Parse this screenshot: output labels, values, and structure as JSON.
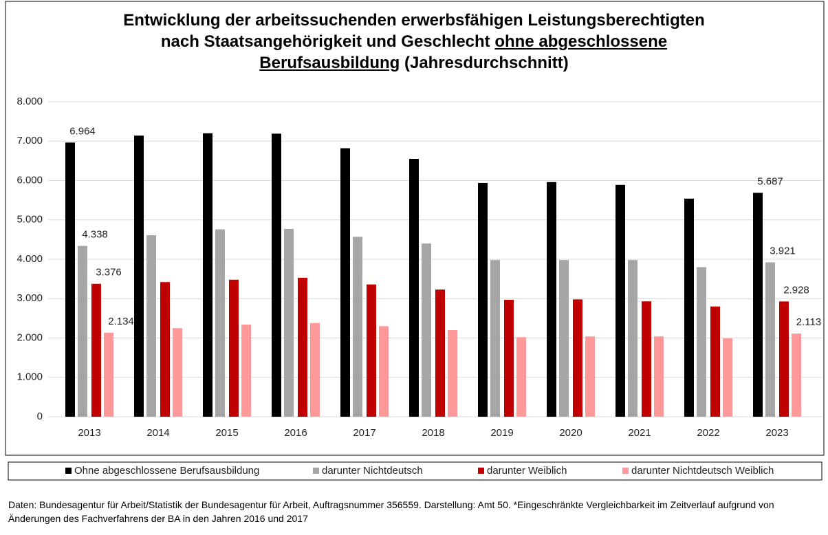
{
  "chart_data": {
    "type": "bar",
    "title_lines": [
      [
        {
          "text": "Entwicklung der arbeitssuchenden erwerbsfähigen Leistungsberechtigten",
          "underline": false
        }
      ],
      [
        {
          "text": "nach Staatsangehörigkeit und Geschlecht ",
          "underline": false
        },
        {
          "text": "ohne abgeschlossene",
          "underline": true
        }
      ],
      [
        {
          "text": "Berufsausbildung",
          "underline": true
        },
        {
          "text": " (Jahresdurchschnitt)",
          "underline": false
        }
      ]
    ],
    "categories": [
      "2013",
      "2014",
      "2015",
      "2016",
      "2017",
      "2018",
      "2019",
      "2020",
      "2021",
      "2022",
      "2023"
    ],
    "series": [
      {
        "name": "Ohne abgeschlossene Berufsausbildung",
        "color": "#000000",
        "values": [
          6964,
          7140,
          7200,
          7190,
          6820,
          6550,
          5940,
          5960,
          5890,
          5540,
          5687
        ],
        "value_labels": [
          "6.964",
          null,
          null,
          null,
          null,
          null,
          null,
          null,
          null,
          null,
          "5.687"
        ]
      },
      {
        "name": "darunter Nichtdeutsch",
        "color": "#a6a6a6",
        "values": [
          4338,
          4610,
          4760,
          4770,
          4570,
          4400,
          3980,
          3980,
          3980,
          3800,
          3921
        ],
        "value_labels": [
          "4.338",
          null,
          null,
          null,
          null,
          null,
          null,
          null,
          null,
          null,
          "3.921"
        ]
      },
      {
        "name": "darunter Weiblich",
        "color": "#c00000",
        "values": [
          3376,
          3420,
          3480,
          3530,
          3360,
          3230,
          2970,
          2980,
          2930,
          2800,
          2928
        ],
        "value_labels": [
          "3.376",
          null,
          null,
          null,
          null,
          null,
          null,
          null,
          null,
          null,
          "2.928"
        ]
      },
      {
        "name": "darunter Nichtdeutsch Weiblich",
        "color": "#ff9999",
        "values": [
          2134,
          2250,
          2340,
          2380,
          2300,
          2200,
          2020,
          2040,
          2040,
          1990,
          2113
        ],
        "value_labels": [
          "2.134",
          null,
          null,
          null,
          null,
          null,
          null,
          null,
          null,
          null,
          "2.113"
        ]
      }
    ],
    "ylim": [
      0,
      8000
    ],
    "yticks": [
      0,
      {
        "value": 1000,
        "label": "1.000"
      },
      {
        "value": 2000,
        "label": "2.000"
      },
      {
        "value": 3000,
        "label": "3.000"
      },
      {
        "value": 4000,
        "label": "4.000"
      },
      {
        "value": 5000,
        "label": "5.000"
      },
      {
        "value": 6000,
        "label": "6.000"
      },
      {
        "value": 7000,
        "label": "7.000"
      },
      {
        "value": 8000,
        "label": "8.000"
      }
    ],
    "grid": true,
    "legend": "bottom",
    "source": "Daten: Bundesagentur für Arbeit/Statistik der Bundesagentur für Arbeit, Auftragsnummer 356559. Darstellung: Amt 50. *Eingeschränkte Vergleichbarkeit im Zeitverlauf aufgrund von Änderungen des Fachverfahrens der BA in den Jahren 2016 und 2017"
  }
}
